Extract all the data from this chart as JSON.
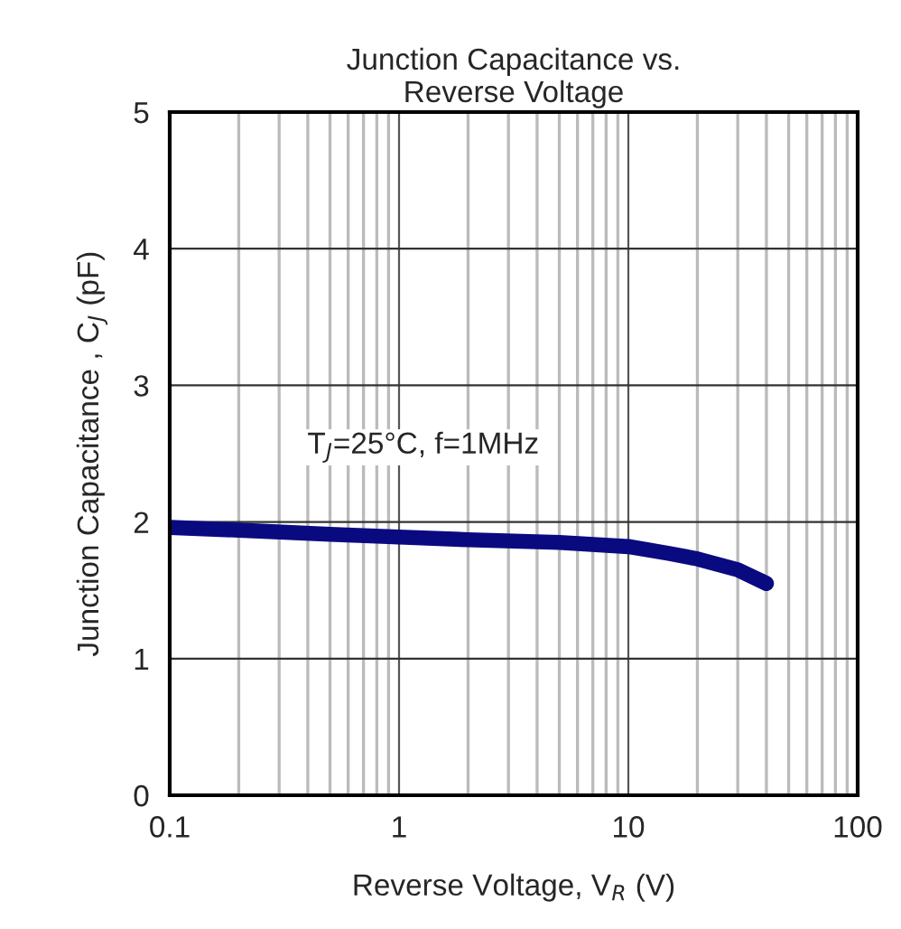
{
  "chart_data": {
    "type": "line",
    "title": "Junction Capacitance vs.\nReverse Voltage",
    "xlabel": "Reverse Voltage, V$_{R}$ (V)",
    "ylabel": "Junction Capacitance , C$_{J}$ (pF)",
    "annotations": [
      "T$_{J}$=25°C, f=1MHz"
    ],
    "x": [
      0.1,
      0.2,
      0.5,
      1,
      2,
      5,
      10,
      15,
      20,
      30,
      40
    ],
    "series": [
      {
        "color": "#0a0a80",
        "values": [
          1.96,
          1.94,
          1.91,
          1.89,
          1.87,
          1.85,
          1.82,
          1.77,
          1.73,
          1.65,
          1.55
        ]
      }
    ],
    "log": "x",
    "xlim": [
      0.1,
      100
    ],
    "xticks": [
      0.1,
      1,
      10,
      100
    ],
    "ylim": [
      0,
      5
    ],
    "yticks": [
      0,
      1,
      2,
      3,
      4,
      5
    ],
    "grid": true,
    "legend": false,
    "marker": "none",
    "line_style": "solid"
  }
}
